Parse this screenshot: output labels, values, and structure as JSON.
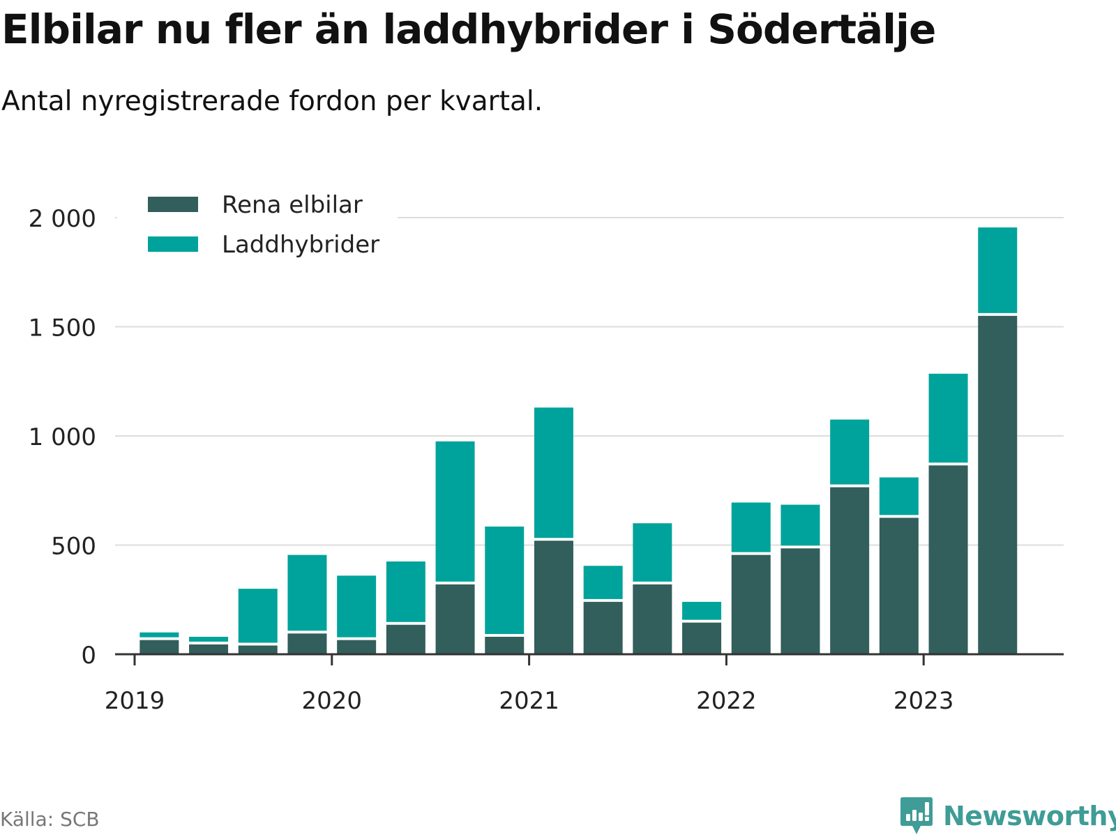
{
  "header": {
    "title": "Elbilar nu fler än laddhybrider i Södertälje",
    "subtitle": "Antal nyregistrerade fordon per kvartal."
  },
  "footer": {
    "source": "Källa: SCB",
    "brand": "Newsworthy"
  },
  "colors": {
    "rena_elbilar": "#325e5b",
    "laddhybrider": "#00a39b",
    "grid": "#dddddd",
    "axis": "#333333",
    "brand": "#3f9c96"
  },
  "chart_data": {
    "type": "bar",
    "stacked": true,
    "title": "Elbilar nu fler än laddhybrider i Södertälje",
    "subtitle": "Antal nyregistrerade fordon per kvartal.",
    "xlabel": "",
    "ylabel": "",
    "ylim": [
      0,
      2000
    ],
    "yticks": [
      0,
      500,
      1000,
      1500,
      2000
    ],
    "ytick_labels": [
      "0",
      "500",
      "1 000",
      "1 500",
      "2 000"
    ],
    "xtick_labels": [
      "2019",
      "2020",
      "2021",
      "2022",
      "2023"
    ],
    "legend_position": "top-left",
    "grid": true,
    "categories": [
      "2019 Q1",
      "2019 Q2",
      "2019 Q3",
      "2019 Q4",
      "2020 Q1",
      "2020 Q2",
      "2020 Q3",
      "2020 Q4",
      "2021 Q1",
      "2021 Q2",
      "2021 Q3",
      "2021 Q4",
      "2022 Q1",
      "2022 Q2",
      "2022 Q3",
      "2022 Q4",
      "2023 Q1",
      "2023 Q2"
    ],
    "series": [
      {
        "name": "Rena elbilar",
        "values": [
          65,
          45,
          40,
          95,
          65,
          135,
          320,
          80,
          520,
          240,
          320,
          145,
          455,
          485,
          765,
          625,
          865,
          1550
        ]
      },
      {
        "name": "Laddhybrider",
        "values": [
          35,
          35,
          260,
          360,
          295,
          290,
          655,
          505,
          610,
          165,
          280,
          95,
          240,
          200,
          310,
          185,
          420,
          405
        ]
      }
    ]
  }
}
